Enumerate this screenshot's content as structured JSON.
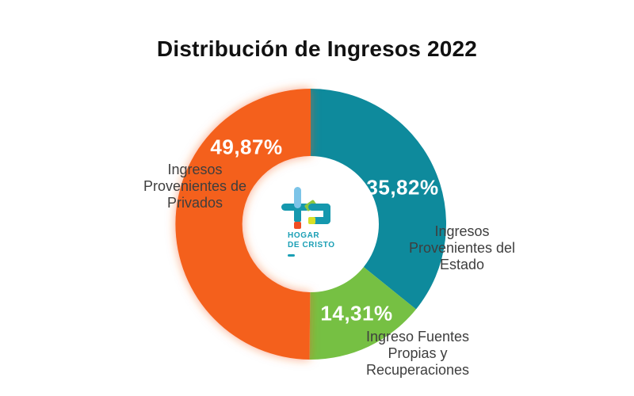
{
  "title": "Distribución de Ingresos 2022",
  "chart_data": {
    "type": "pie",
    "subtype": "donut",
    "title": "Distribución de Ingresos 2022",
    "start_angle_deg": 0,
    "direction": "clockwise",
    "inner_radius_ratio": 0.5,
    "legend_position": "none",
    "slices": [
      {
        "label": "Ingresos Provenientes del Estado",
        "value": 35.82,
        "pct_label": "35,82%",
        "color": "#0e8a9c",
        "soft_edge": false
      },
      {
        "label": "Ingreso Fuentes Propias y Recuperaciones",
        "value": 14.31,
        "pct_label": "14,31%",
        "color": "#76c043",
        "soft_edge": false
      },
      {
        "label": "Ingresos Provenientes de Privados",
        "value": 49.87,
        "pct_label": "49,87%",
        "color": "#f4601d",
        "soft_edge": true
      }
    ]
  },
  "annotations": {
    "privados": "Ingresos\nProvenientes de\nPrivados",
    "estado": "Ingresos\nProvenientes del\nEstado",
    "fuentes": "Ingreso Fuentes\nPropias y\nRecuperaciones"
  },
  "logo": {
    "name": "Hogar de Cristo",
    "wordmark": "HOGAR\nDE CRISTO",
    "colors": {
      "teal": "#1598ae",
      "light_blue": "#7cc4e8",
      "orange_dot": "#f04e23",
      "yellow_dot": "#d8df26",
      "green_accent": "#8cc63f",
      "text_teal": "#1a9fb5"
    }
  }
}
